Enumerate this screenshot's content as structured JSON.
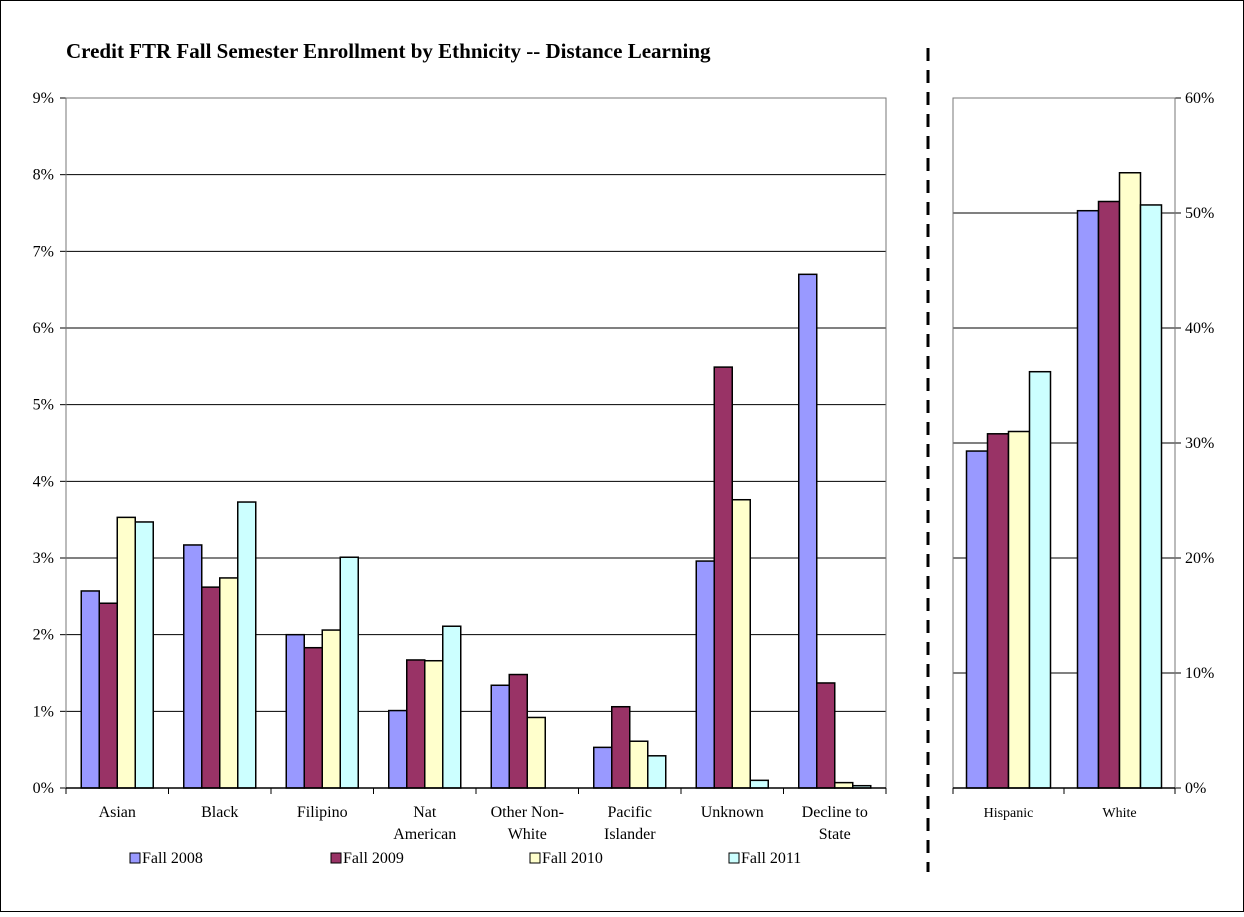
{
  "chart_data": [
    {
      "type": "bar",
      "title": "Credit FTR Fall Semester Enrollment by Ethnicity -- Distance Learning",
      "categories": [
        [
          "Asian"
        ],
        [
          "Black"
        ],
        [
          "Filipino"
        ],
        [
          "Nat",
          "American"
        ],
        [
          "Other Non-",
          "White"
        ],
        [
          "Pacific",
          "Islander"
        ],
        [
          "Unknown"
        ],
        [
          "Decline to",
          "State"
        ]
      ],
      "ylim": [
        0,
        9
      ],
      "yticks": [
        "0%",
        "1%",
        "2%",
        "3%",
        "4%",
        "5%",
        "6%",
        "7%",
        "8%",
        "9%"
      ],
      "grid": true,
      "series": [
        {
          "name": "Fall 2008",
          "color": "#9999ff",
          "values": [
            2.57,
            3.17,
            2.0,
            1.01,
            1.34,
            0.53,
            2.96,
            6.7
          ]
        },
        {
          "name": "Fall 2009",
          "color": "#993366",
          "values": [
            2.41,
            2.62,
            1.83,
            1.67,
            1.48,
            1.06,
            5.49,
            1.37
          ]
        },
        {
          "name": "Fall 2010",
          "color": "#ffffcc",
          "values": [
            3.53,
            2.74,
            2.06,
            1.66,
            0.92,
            0.61,
            3.76,
            0.07
          ]
        },
        {
          "name": "Fall 2011",
          "color": "#ccffff",
          "values": [
            3.47,
            3.73,
            3.01,
            2.11,
            0.0,
            0.42,
            0.1,
            0.03
          ]
        }
      ]
    },
    {
      "type": "bar",
      "title": "",
      "categories": [
        [
          "Hispanic"
        ],
        [
          "White"
        ]
      ],
      "ylim": [
        0,
        60
      ],
      "yticks": [
        "0%",
        "10%",
        "20%",
        "30%",
        "40%",
        "50%",
        "60%"
      ],
      "grid": true,
      "series": [
        {
          "name": "Fall 2008",
          "color": "#9999ff",
          "values": [
            29.3,
            50.2
          ]
        },
        {
          "name": "Fall 2009",
          "color": "#993366",
          "values": [
            30.8,
            51.0
          ]
        },
        {
          "name": "Fall 2010",
          "color": "#ffffcc",
          "values": [
            31.0,
            53.5
          ]
        },
        {
          "name": "Fall 2011",
          "color": "#ccffff",
          "values": [
            36.2,
            50.7
          ]
        }
      ]
    }
  ],
  "legend": [
    "Fall 2008",
    "Fall 2009",
    "Fall 2010",
    "Fall 2011"
  ]
}
